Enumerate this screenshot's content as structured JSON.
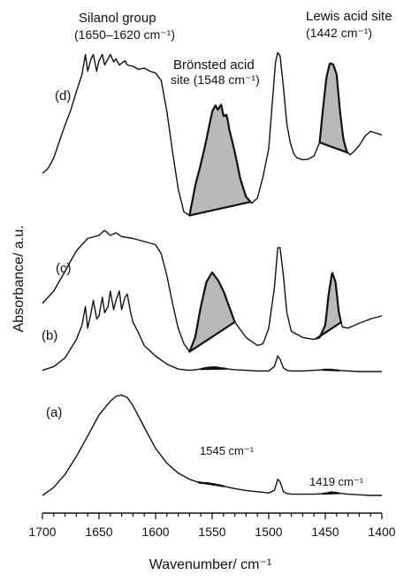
{
  "chart_data": {
    "type": "line",
    "title": "",
    "xlabel": "Wavenumber/ cm⁻¹",
    "ylabel": "Absorbance/ a.u.",
    "xlim": [
      1700,
      1400
    ],
    "x_reversed": true,
    "x_ticks": [
      "1700",
      "1650",
      "1600",
      "1550",
      "1500",
      "1450",
      "1400"
    ],
    "grid": false,
    "legend": "none",
    "annotations": {
      "silanol": [
        "Silanol group",
        "(1650–1620 cm⁻¹)"
      ],
      "lewis": [
        "Lewis acid site",
        "(1442 cm⁻¹)"
      ],
      "bronsted": [
        "Brönsted acid",
        "site (1548 cm⁻¹)"
      ],
      "peak_1545": "1545 cm⁻¹",
      "peak_1419": "1419 cm⁻¹"
    },
    "series": [
      {
        "name": "(a)",
        "x": [
          1700,
          1690,
          1680,
          1670,
          1660,
          1650,
          1640,
          1635,
          1630,
          1625,
          1620,
          1610,
          1600,
          1590,
          1580,
          1570,
          1560,
          1555,
          1548,
          1540,
          1530,
          1520,
          1510,
          1500,
          1495,
          1492,
          1490,
          1487,
          1484,
          1480,
          1470,
          1460,
          1450,
          1445,
          1440,
          1430,
          1420,
          1410,
          1400
        ],
        "y": [
          0.0,
          0.13,
          0.34,
          0.63,
          0.96,
          1.3,
          1.52,
          1.6,
          1.62,
          1.58,
          1.45,
          1.1,
          0.76,
          0.52,
          0.36,
          0.26,
          0.2,
          0.2,
          0.18,
          0.15,
          0.11,
          0.08,
          0.06,
          0.04,
          0.08,
          0.26,
          0.22,
          0.06,
          0.03,
          0.02,
          0.02,
          0.02,
          0.03,
          0.05,
          0.04,
          0.02,
          0.01,
          0.0,
          0.0
        ]
      },
      {
        "name": "(b)",
        "x": [
          1700,
          1690,
          1680,
          1670,
          1665,
          1662,
          1660,
          1657,
          1655,
          1652,
          1650,
          1647,
          1645,
          1642,
          1640,
          1637,
          1635,
          1632,
          1630,
          1627,
          1625,
          1622,
          1620,
          1615,
          1610,
          1600,
          1590,
          1580,
          1570,
          1560,
          1555,
          1548,
          1540,
          1530,
          1520,
          1510,
          1500,
          1495,
          1492,
          1490,
          1487,
          1484,
          1480,
          1470,
          1460,
          1450,
          1445,
          1440,
          1430,
          1420,
          1410,
          1400
        ],
        "y": [
          2.02,
          2.08,
          2.22,
          2.52,
          2.75,
          3.05,
          2.7,
          2.95,
          3.15,
          2.85,
          2.9,
          3.2,
          2.95,
          3.05,
          3.3,
          3.0,
          3.15,
          3.3,
          3.0,
          3.2,
          3.25,
          2.95,
          2.8,
          2.62,
          2.42,
          2.25,
          2.12,
          2.04,
          2.02,
          2.04,
          2.06,
          2.07,
          2.05,
          2.03,
          2.02,
          2.01,
          2.01,
          2.08,
          2.25,
          2.2,
          2.06,
          2.02,
          2.01,
          2.01,
          2.02,
          2.03,
          2.03,
          2.02,
          2.01,
          2.0,
          2.0,
          2.0
        ]
      },
      {
        "name": "(c)",
        "x": [
          1700,
          1690,
          1680,
          1670,
          1660,
          1650,
          1645,
          1640,
          1635,
          1630,
          1620,
          1610,
          1600,
          1595,
          1590,
          1585,
          1580,
          1575,
          1570,
          1565,
          1560,
          1555,
          1550,
          1545,
          1540,
          1535,
          1530,
          1520,
          1510,
          1505,
          1500,
          1495,
          1492,
          1490,
          1487,
          1484,
          1480,
          1470,
          1460,
          1455,
          1450,
          1447,
          1444,
          1441,
          1438,
          1435,
          1430,
          1420,
          1410,
          1400
        ],
        "y": [
          3.1,
          3.3,
          3.62,
          3.95,
          4.15,
          4.2,
          4.28,
          4.2,
          4.24,
          4.18,
          4.15,
          4.1,
          4.05,
          3.9,
          3.55,
          3.1,
          2.7,
          2.45,
          2.32,
          2.55,
          3.05,
          3.45,
          3.6,
          3.48,
          3.3,
          3.05,
          2.8,
          2.55,
          2.42,
          2.45,
          2.7,
          3.35,
          4.0,
          4.0,
          3.55,
          2.95,
          2.65,
          2.55,
          2.52,
          2.55,
          2.75,
          3.25,
          3.6,
          3.45,
          2.95,
          2.72,
          2.7,
          2.78,
          2.85,
          2.9
        ]
      },
      {
        "name": "(d)",
        "x": [
          1700,
          1695,
          1690,
          1685,
          1680,
          1675,
          1670,
          1665,
          1662,
          1660,
          1657,
          1655,
          1652,
          1650,
          1647,
          1645,
          1642,
          1640,
          1637,
          1635,
          1632,
          1630,
          1627,
          1625,
          1620,
          1615,
          1610,
          1605,
          1600,
          1595,
          1590,
          1585,
          1580,
          1575,
          1570,
          1565,
          1560,
          1555,
          1550,
          1547,
          1545,
          1542,
          1540,
          1537,
          1535,
          1530,
          1525,
          1520,
          1515,
          1510,
          1505,
          1500,
          1497,
          1494,
          1492,
          1490,
          1487,
          1484,
          1481,
          1478,
          1475,
          1470,
          1465,
          1460,
          1455,
          1452,
          1449,
          1446,
          1443,
          1440,
          1437,
          1434,
          1431,
          1428,
          1425,
          1420,
          1415,
          1410,
          1405,
          1400
        ],
        "y": [
          5.2,
          5.28,
          5.45,
          5.72,
          5.98,
          6.22,
          6.52,
          6.8,
          7.12,
          6.85,
          7.05,
          7.12,
          6.85,
          7.02,
          7.12,
          6.95,
          7.05,
          7.12,
          7.0,
          7.05,
          6.95,
          6.98,
          7.02,
          6.95,
          6.93,
          6.88,
          6.9,
          6.85,
          6.82,
          6.7,
          6.2,
          5.55,
          4.95,
          4.58,
          4.52,
          5.0,
          5.35,
          5.75,
          6.2,
          6.3,
          6.22,
          6.32,
          6.12,
          6.15,
          5.92,
          5.55,
          5.1,
          4.82,
          4.72,
          4.8,
          5.15,
          5.6,
          6.3,
          7.0,
          7.15,
          7.1,
          6.6,
          6.0,
          5.7,
          5.52,
          5.45,
          5.42,
          5.43,
          5.48,
          5.7,
          6.25,
          6.75,
          6.98,
          6.96,
          6.8,
          6.2,
          5.75,
          5.55,
          5.5,
          5.55,
          5.65,
          5.8,
          5.88,
          5.85,
          5.82
        ]
      }
    ]
  }
}
